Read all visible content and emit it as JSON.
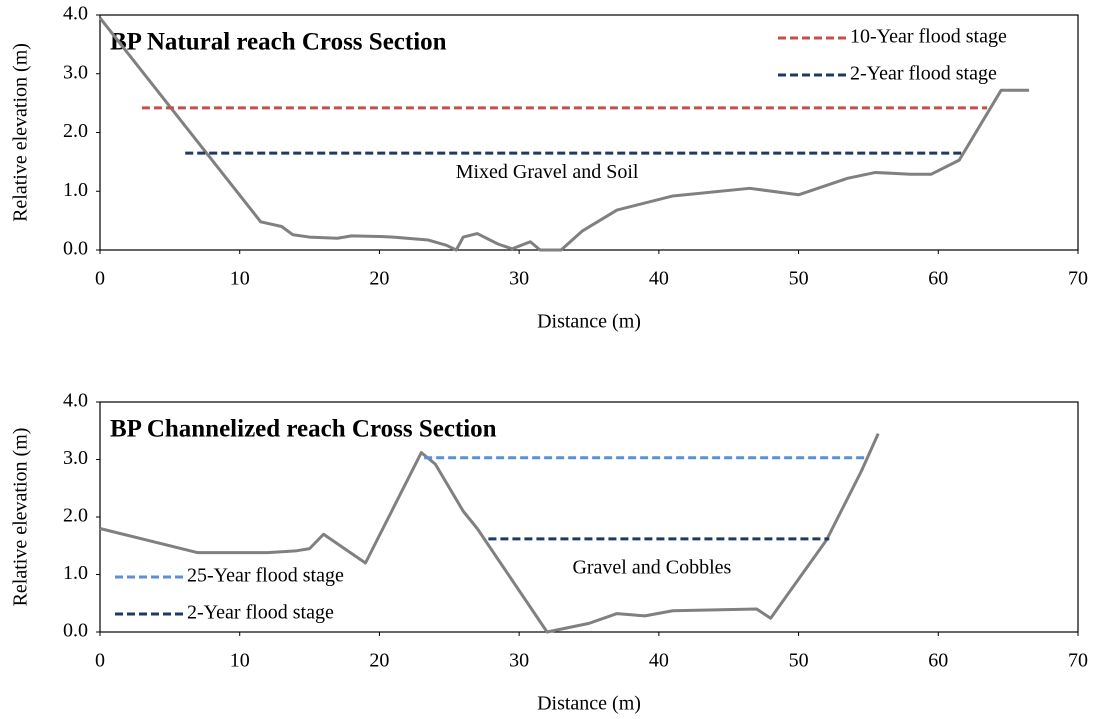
{
  "chart_data": [
    {
      "type": "line",
      "title": "BP Natural reach Cross Section",
      "xlabel": "Distance (m)",
      "ylabel": "Relative elevation (m)",
      "xlim": [
        0,
        70
      ],
      "xticks": [
        0,
        10,
        20,
        30,
        40,
        50,
        60,
        70
      ],
      "ylim": [
        0,
        4
      ],
      "yticks": [
        {
          "value": 0,
          "label": "0.0"
        },
        {
          "value": 1,
          "label": "1.0"
        },
        {
          "value": 2,
          "label": "2.0"
        },
        {
          "value": 3,
          "label": "3.0"
        },
        {
          "value": 4,
          "label": "4.0"
        }
      ],
      "legend": "upper right",
      "grid": false,
      "annotations": [
        {
          "text": "Mixed Gravel and Soil",
          "x": 32,
          "y": 1.3
        }
      ],
      "series": [
        {
          "color": "#808080",
          "x": [
            0,
            11.5,
            13,
            13.8,
            15,
            17,
            18,
            20,
            21,
            22.5,
            23.5,
            24.8,
            25.5,
            26,
            27,
            28.5,
            29.5,
            30.8,
            31.5,
            33,
            34.5,
            37,
            41,
            46.5,
            50,
            53.5,
            55.5,
            58,
            59.5,
            61.5,
            64.5,
            66.5
          ],
          "values": [
            3.95,
            0.48,
            0.4,
            0.26,
            0.22,
            0.2,
            0.24,
            0.23,
            0.22,
            0.19,
            0.17,
            0.08,
            0.0,
            0.22,
            0.28,
            0.1,
            0.02,
            0.14,
            0.0,
            0.0,
            0.32,
            0.68,
            0.92,
            1.05,
            0.94,
            1.22,
            1.32,
            1.29,
            1.29,
            1.53,
            2.72,
            2.72
          ]
        },
        {
          "name": "10-Year flood stage",
          "color": "#c0504d",
          "dashed": true,
          "x": [
            3,
            63.5
          ],
          "values": [
            2.42,
            2.42
          ]
        },
        {
          "name": "2-Year flood stage",
          "color": "#1f3864",
          "dashed": true,
          "x": [
            6.1,
            61.8
          ],
          "values": [
            1.65,
            1.65
          ]
        }
      ]
    },
    {
      "type": "line",
      "title": "BP Channelized reach Cross Section",
      "xlabel": "Distance (m)",
      "ylabel": "Relative elevation (m)",
      "xlim": [
        0,
        70
      ],
      "xticks": [
        0,
        10,
        20,
        30,
        40,
        50,
        60,
        70
      ],
      "ylim": [
        0,
        4
      ],
      "yticks": [
        {
          "value": 0,
          "label": "0.0"
        },
        {
          "value": 1,
          "label": "1.0"
        },
        {
          "value": 2,
          "label": "2.0"
        },
        {
          "value": 3,
          "label": "3.0"
        },
        {
          "value": 4,
          "label": "4.0"
        }
      ],
      "legend": "lower left",
      "grid": false,
      "annotations": [
        {
          "text": "Gravel and Cobbles",
          "x": 39.5,
          "y": 1.1
        }
      ],
      "series": [
        {
          "color": "#808080",
          "x": [
            0,
            7,
            12,
            14,
            15,
            16,
            19,
            23,
            24,
            26,
            27,
            32,
            35,
            37,
            39,
            41,
            47,
            48,
            52,
            54.5,
            55.7
          ],
          "values": [
            1.8,
            1.38,
            1.38,
            1.41,
            1.45,
            1.7,
            1.2,
            3.12,
            2.92,
            2.1,
            1.8,
            0.0,
            0.15,
            0.32,
            0.28,
            0.37,
            0.4,
            0.24,
            1.6,
            2.8,
            3.45
          ]
        },
        {
          "name": "25-Year flood stage",
          "color": "#5b8fd6",
          "dashed": true,
          "x": [
            23.2,
            55
          ],
          "values": [
            3.03,
            3.03
          ]
        },
        {
          "name": "2-Year flood stage",
          "color": "#1f3864",
          "dashed": true,
          "x": [
            27.8,
            52.2
          ],
          "values": [
            1.62,
            1.62
          ]
        }
      ]
    }
  ]
}
